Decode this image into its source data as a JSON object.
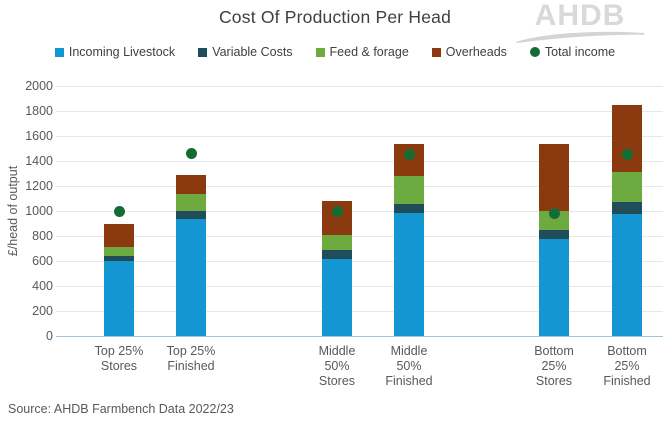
{
  "header": {
    "logo_text": "AHDB"
  },
  "source_note": "Source: AHDB Farmbench Data 2022/23",
  "colors": {
    "title_text": "#3f3f3f",
    "axis_text": "#595959",
    "gridline": "#e8e8e8",
    "axis_line": "#9cc3e0",
    "logo_gray": "#d9d9d9"
  },
  "chart_data": {
    "type": "bar",
    "stacked": true,
    "title": "Cost Of Production Per Head",
    "xlabel": "",
    "ylabel": "£/head of output",
    "ylim": [
      0,
      2000
    ],
    "ytick_step": 200,
    "grid": true,
    "legend_position": "top",
    "categories": [
      "Top 25% Stores",
      "Top 25% Finished",
      "Middle 50% Stores",
      "Middle 50% Finished",
      "Bottom 25% Stores",
      "Bottom 25% Finished"
    ],
    "category_label_lines": [
      [
        "Top 25%",
        "Stores"
      ],
      [
        "Top 25%",
        "Finished"
      ],
      [
        "Middle",
        "50%",
        "Stores"
      ],
      [
        "Middle",
        "50%",
        "Finished"
      ],
      [
        "Bottom",
        "25%",
        "Stores"
      ],
      [
        "Bottom",
        "25%",
        "Finished"
      ]
    ],
    "series": [
      {
        "name": "Incoming Livestock",
        "type": "bar",
        "color": "#1496d2",
        "values": [
          600,
          940,
          620,
          985,
          780,
          980
        ]
      },
      {
        "name": "Variable Costs",
        "type": "bar",
        "color": "#1f4e5a",
        "values": [
          40,
          60,
          65,
          75,
          65,
          90
        ]
      },
      {
        "name": "Feed & forage",
        "type": "bar",
        "color": "#6daa3f",
        "values": [
          75,
          140,
          125,
          220,
          155,
          240
        ]
      },
      {
        "name": "Overheads",
        "type": "bar",
        "color": "#8b3a0f",
        "values": [
          185,
          145,
          270,
          260,
          540,
          540
        ]
      },
      {
        "name": "Total income",
        "type": "point",
        "color": "#146c35",
        "values": [
          1000,
          1460,
          1000,
          1455,
          980,
          1450
        ]
      }
    ],
    "stack_totals": [
      900,
      1285,
      1080,
      1540,
      1540,
      1850
    ]
  }
}
